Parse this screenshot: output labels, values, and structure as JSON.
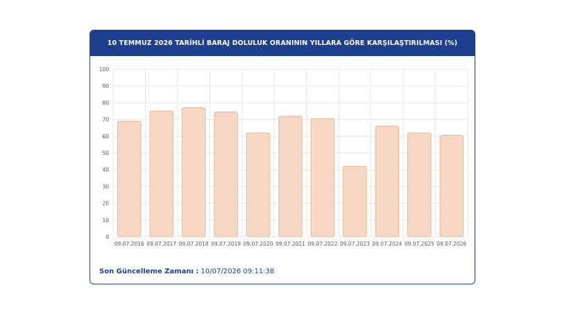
{
  "header": {
    "title": "10 TEMMUZ 2026 TARİHLİ BARAJ DOLULUK ORANININ YILLARA GÖRE KARŞILAŞTIRILMASI (%)"
  },
  "footer": {
    "label": "Son Güncelleme Zamanı :",
    "value": "10/07/2026 09:11:38"
  },
  "colors": {
    "bar_fill": "#f5d7c3",
    "bar_stroke": "#e8b898",
    "header_bg": "#1d3f8f",
    "grid": "#e6e6e6"
  },
  "chart_data": {
    "type": "bar",
    "title": "10 TEMMUZ 2026 TARİHLİ BARAJ DOLULUK ORANININ YILLARA GÖRE KARŞILAŞTIRILMASI (%)",
    "categories": [
      "09.07.2016",
      "09.07.2017",
      "09.07.2018",
      "09.07.2019",
      "09.07.2020",
      "09.07.2021",
      "09.07.2022",
      "09.07.2023",
      "09.07.2024",
      "09.07.2025",
      "09.07.2026"
    ],
    "values": [
      69,
      75,
      77,
      74.5,
      62,
      72,
      70.5,
      42,
      66,
      62,
      60.5
    ],
    "ylim": [
      0,
      100
    ],
    "yticks": [
      0,
      10,
      20,
      30,
      40,
      50,
      60,
      70,
      80,
      90,
      100
    ],
    "grid": true
  }
}
